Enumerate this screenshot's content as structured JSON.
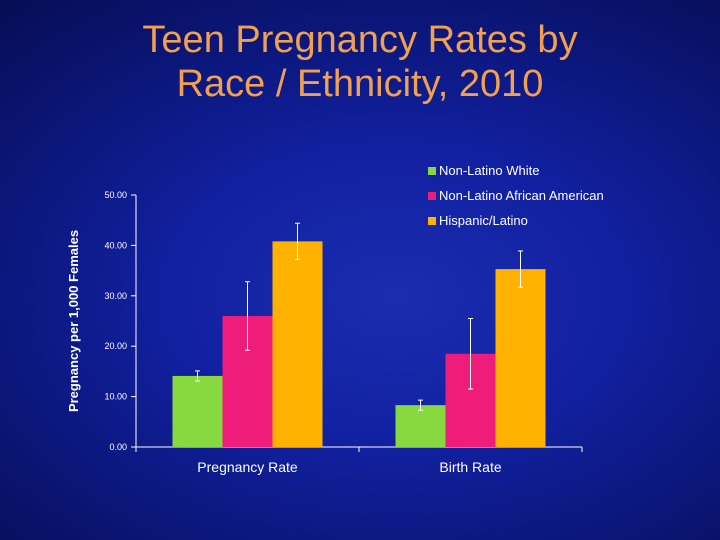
{
  "title": {
    "line1": "Teen Pregnancy Rates by",
    "line2": "Race / Ethnicity, 2010"
  },
  "colors": {
    "title": "#f0a050",
    "axis": "#ffffff",
    "error_bar": "#ffffff"
  },
  "chart_data": {
    "type": "bar",
    "categories": [
      "Pregnancy Rate",
      "Birth Rate"
    ],
    "series": [
      {
        "name": "Non-Latino White",
        "color": "#88d840",
        "values": [
          14.1,
          8.3
        ],
        "error": [
          1.0,
          1.0
        ]
      },
      {
        "name": "Non-Latino African American",
        "color": "#ee1c7a",
        "values": [
          26.0,
          18.5
        ],
        "error": [
          6.8,
          7.0
        ]
      },
      {
        "name": "Hispanic/Latino",
        "color": "#ffb300",
        "values": [
          40.8,
          35.3
        ],
        "error": [
          3.6,
          3.6
        ]
      }
    ],
    "xlabel": "",
    "ylabel": "Pregnancy per 1,000 Females",
    "ylim": [
      0,
      50
    ],
    "yticks": [
      "0.00",
      "10.00",
      "20.00",
      "30.00",
      "40.00",
      "50.00"
    ],
    "grid": false,
    "legend_position": "top-right"
  }
}
